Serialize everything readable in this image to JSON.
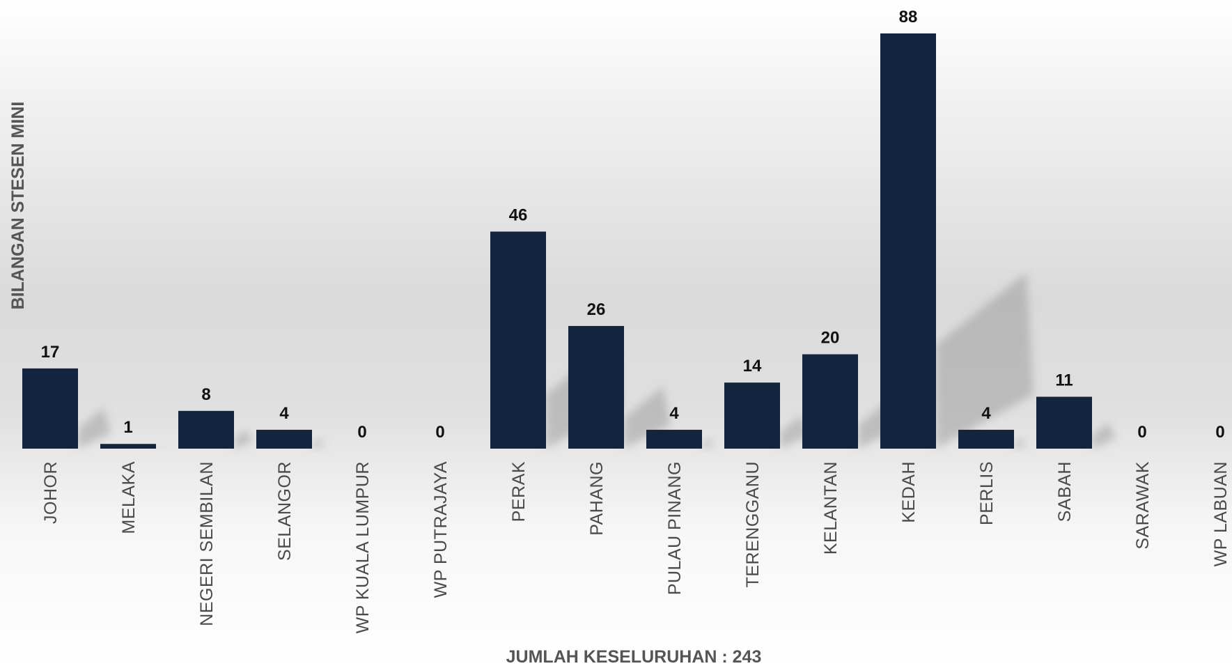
{
  "chart_data": {
    "type": "bar",
    "title": "",
    "ylabel": "BILANGAN STESEN MINI",
    "xlabel": "JUMLAH KESELURUHAN : 243",
    "categories": [
      "JOHOR",
      "MELAKA",
      "NEGERI SEMBILAN",
      "SELANGOR",
      "WP KUALA LUMPUR",
      "WP PUTRAJAYA",
      "PERAK",
      "PAHANG",
      "PULAU PINANG",
      "TERENGGANU",
      "KELANTAN",
      "KEDAH",
      "PERLIS",
      "SABAH",
      "SARAWAK",
      "WP LABUAN"
    ],
    "values": [
      17,
      1,
      8,
      4,
      0,
      0,
      46,
      26,
      4,
      14,
      20,
      88,
      4,
      11,
      0,
      0
    ],
    "ylim": [
      0,
      88
    ],
    "grid": false,
    "legend": "none",
    "colors": {
      "bar": "#13243f"
    }
  }
}
